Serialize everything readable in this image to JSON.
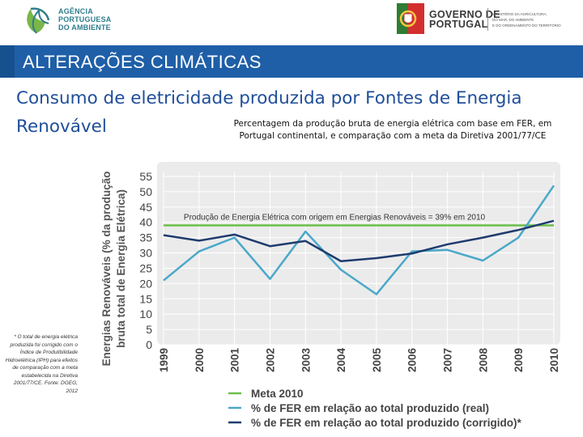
{
  "header": {
    "apa_logo_lines": [
      "AGÊNCIA",
      "PORTUGUESA",
      "DO AMBIENTE"
    ],
    "gov_logo_lines": [
      "GOVERNO DE",
      "PORTUGAL"
    ],
    "ministry_lines": [
      "MINISTÉRIO DA AGRICULTURA,",
      "DO MAR, DO AMBIENTE",
      "E DO ORDENAMENTO DO TERRITÓRIO"
    ]
  },
  "banner": {
    "title": "ALTERAÇÕES CLIMÁTICAS"
  },
  "slide": {
    "title": "Consumo de eletricidade produzida por Fontes de Energia Renovável",
    "subtitle": "Percentagem da produção bruta de energia elétrica com base em FER, em Portugal continental, e comparação com a meta da Diretiva 2001/77/CE"
  },
  "footnote": "* O total de energia elétrica produzida foi corrigido com o Índice de Produtibilidade Hidroelétrica (IPH) para efeitos de comparação com a meta estabelecida na Diretiva 2001/77/CE. Fonte: DGEG, 2012",
  "colors": {
    "banner": "#1f5fa7",
    "title_text": "#1f4e9a",
    "meta": "#6abf4b",
    "real": "#4aa8c9",
    "corrected": "#1f3b6e",
    "plot_bg": "#ebebeb"
  },
  "chart_data": {
    "type": "line",
    "x": [
      "1999",
      "2000",
      "2001",
      "2002",
      "2003",
      "2004",
      "2005",
      "2006",
      "2007",
      "2008",
      "2009",
      "2010"
    ],
    "ylabel": "Energias Renováveis (% da produção bruta total de Energia Elétrica)",
    "ylim": [
      0,
      55
    ],
    "yticks": [
      0,
      5,
      10,
      15,
      20,
      25,
      30,
      35,
      40,
      45,
      50,
      55
    ],
    "grid": true,
    "legend_position": "bottom",
    "annotation": "Produção de Energia Elétrica com origem em Energias Renováveis = 39% em 2010",
    "series": [
      {
        "name": "Meta 2010",
        "values": [
          39,
          39,
          39,
          39,
          39,
          39,
          39,
          39,
          39,
          39,
          39,
          39
        ]
      },
      {
        "name": "% de FER em relação ao total produzido (real)",
        "values": [
          21,
          30.5,
          35,
          21.5,
          37,
          24.5,
          16.5,
          30.5,
          31,
          27.5,
          35,
          52
        ]
      },
      {
        "name": "% de FER em relação ao total produzido (corrigido)*",
        "values": [
          35.8,
          34,
          36,
          32.2,
          33.9,
          27.3,
          28.3,
          29.8,
          32.8,
          35,
          37.5,
          40.5
        ]
      }
    ]
  }
}
